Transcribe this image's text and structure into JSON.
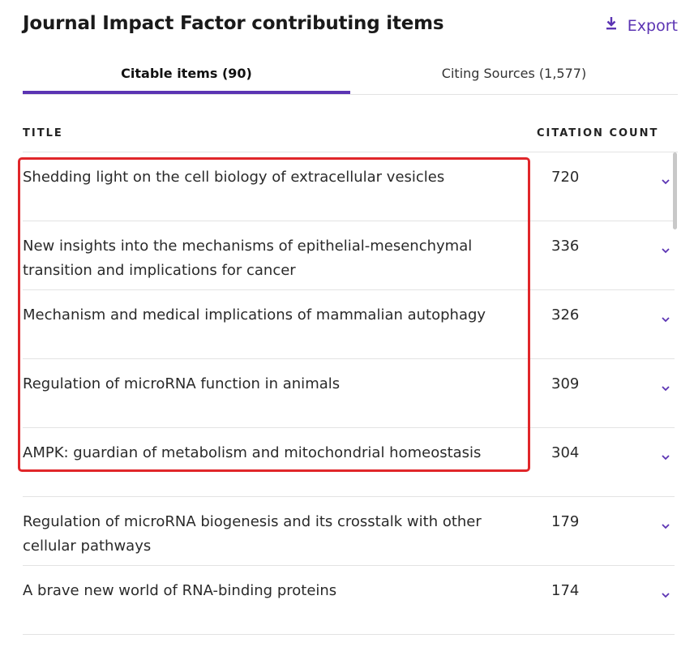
{
  "header": {
    "title": "Journal Impact Factor contributing items",
    "export_label": "Export"
  },
  "tabs": [
    {
      "label": "Citable items (90)",
      "active": true
    },
    {
      "label": "Citing Sources (1,577)",
      "active": false
    }
  ],
  "table": {
    "columns": {
      "title": "TITLE",
      "count": "CITATION COUNT"
    },
    "rows": [
      {
        "title": "Shedding light on the cell biology of extracellular vesicles",
        "count": "720"
      },
      {
        "title": "New insights into the mechanisms of epithelial-mesenchymal transition and implications for cancer",
        "count": "336"
      },
      {
        "title": "Mechanism and medical implications of mammalian autophagy",
        "count": "326"
      },
      {
        "title": "Regulation of microRNA function in animals",
        "count": "309"
      },
      {
        "title": "AMPK: guardian of metabolism and mitochondrial homeostasis",
        "count": "304"
      },
      {
        "title": "Regulation of microRNA biogenesis and its crosstalk with other cellular pathways",
        "count": "179"
      },
      {
        "title": "A brave new world of RNA-binding proteins",
        "count": "174"
      }
    ]
  },
  "colors": {
    "accent": "#5b34b3",
    "highlight_box": "#e0262a",
    "divider": "#e3e3e3"
  },
  "icons": {
    "export": "download-icon",
    "row_expand": "chevron-down-icon"
  }
}
